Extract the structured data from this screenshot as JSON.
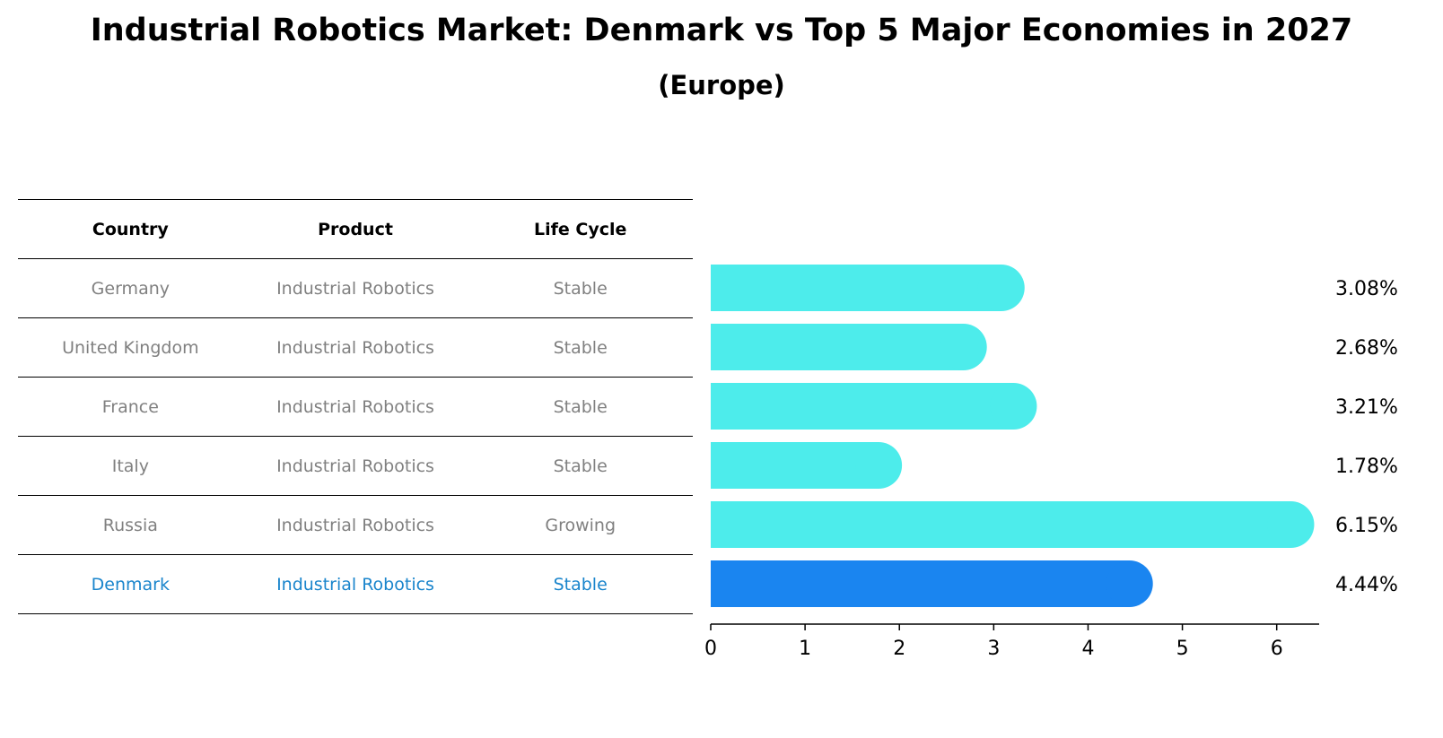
{
  "title": "Industrial Robotics Market: Denmark vs Top 5 Major Economies in 2027",
  "subtitle": "(Europe)",
  "table": {
    "headers": [
      "Country",
      "Product",
      "Life Cycle"
    ],
    "rows": [
      {
        "country": "Germany",
        "product": "Industrial Robotics",
        "life_cycle": "Stable"
      },
      {
        "country": "United Kingdom",
        "product": "Industrial Robotics",
        "life_cycle": "Stable"
      },
      {
        "country": "France",
        "product": "Industrial Robotics",
        "life_cycle": "Stable"
      },
      {
        "country": "Italy",
        "product": "Industrial Robotics",
        "life_cycle": "Stable"
      },
      {
        "country": "Russia",
        "product": "Industrial Robotics",
        "life_cycle": "Growing"
      },
      {
        "country": "Denmark",
        "product": "Industrial Robotics",
        "life_cycle": "Stable"
      }
    ]
  },
  "colors": {
    "bar": "#4deceb",
    "highlight_bar": "#1a85f0",
    "highlight_text": "#1a85cc",
    "muted_text": "#808080"
  },
  "chart_data": {
    "type": "bar",
    "orientation": "horizontal",
    "categories": [
      "Germany",
      "United Kingdom",
      "France",
      "Italy",
      "Russia",
      "Denmark"
    ],
    "values": [
      3.08,
      2.68,
      3.21,
      1.78,
      6.15,
      4.44
    ],
    "value_labels": [
      "3.08%",
      "2.68%",
      "3.21%",
      "1.78%",
      "6.15%",
      "4.44%"
    ],
    "highlight": "Denmark",
    "xlim": [
      0,
      6.45
    ],
    "xticks": [
      0,
      1,
      2,
      3,
      4,
      5,
      6
    ],
    "xlabel": "",
    "ylabel": "",
    "grid": false
  }
}
